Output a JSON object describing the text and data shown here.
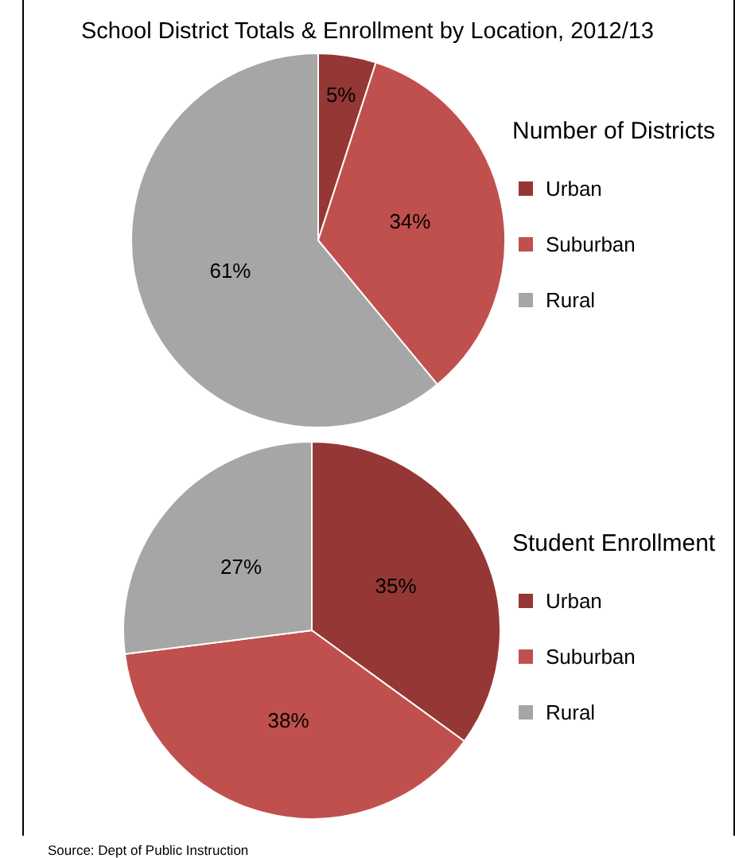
{
  "chart_data": [
    {
      "type": "pie",
      "title": "School District Totals & Enrollment by Location, 2012/13",
      "legend_title": "Number of Districts",
      "legend": "right",
      "categories": [
        "Urban",
        "Suburban",
        "Rural"
      ],
      "values": [
        5,
        34,
        61
      ],
      "colors": [
        "#953735",
        "#c0504d",
        "#a6a6a6"
      ],
      "value_labels": [
        "5%",
        "34%",
        "61%"
      ]
    },
    {
      "type": "pie",
      "legend_title": "Student Enrollment",
      "legend": "right",
      "categories": [
        "Urban",
        "Suburban",
        "Rural"
      ],
      "values": [
        35,
        38,
        27
      ],
      "colors": [
        "#953735",
        "#c0504d",
        "#a6a6a6"
      ],
      "value_labels": [
        "35%",
        "38%",
        "27%"
      ],
      "annotations": [
        "Source: Dept of Public Instruction"
      ]
    }
  ]
}
